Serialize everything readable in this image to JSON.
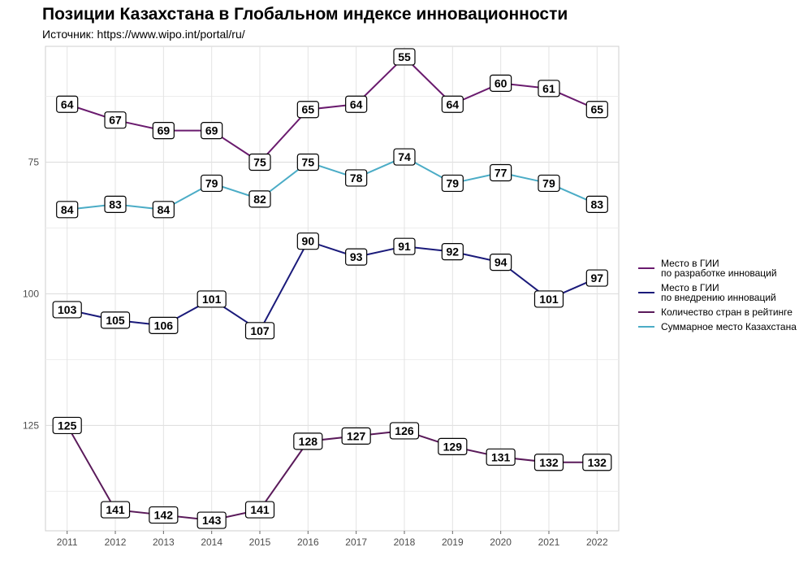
{
  "title": "Позиции Казахстана в Глобальном индексе инновационности",
  "subtitle": "Источник: https://www.wipo.int/portal/ru/",
  "chart_data": {
    "type": "line",
    "x": [
      2011,
      2012,
      2013,
      2014,
      2015,
      2016,
      2017,
      2018,
      2019,
      2020,
      2021,
      2022
    ],
    "y_reversed": true,
    "ylim": [
      145,
      53
    ],
    "yticks": [
      75,
      100,
      125
    ],
    "grid": true,
    "legend_position": "right",
    "series": [
      {
        "name": "Место в ГИИ\nпо разработке инноваций",
        "color": "#6a1b6e",
        "values": [
          64,
          67,
          69,
          69,
          75,
          65,
          64,
          55,
          64,
          60,
          61,
          65
        ]
      },
      {
        "name": "Место в ГИИ\nпо внедрению инноваций",
        "color": "#1a1a7a",
        "values": [
          103,
          105,
          106,
          101,
          107,
          90,
          93,
          91,
          92,
          94,
          101,
          97
        ]
      },
      {
        "name": "Количество стран в рейтинге",
        "color": "#5a1a5a",
        "values": [
          125,
          141,
          142,
          143,
          141,
          128,
          127,
          126,
          129,
          131,
          132,
          132
        ]
      },
      {
        "name": "Суммарное место Казахстана",
        "color": "#4bacc6",
        "values": [
          84,
          83,
          84,
          79,
          82,
          75,
          78,
          74,
          79,
          77,
          79,
          83
        ]
      }
    ]
  }
}
